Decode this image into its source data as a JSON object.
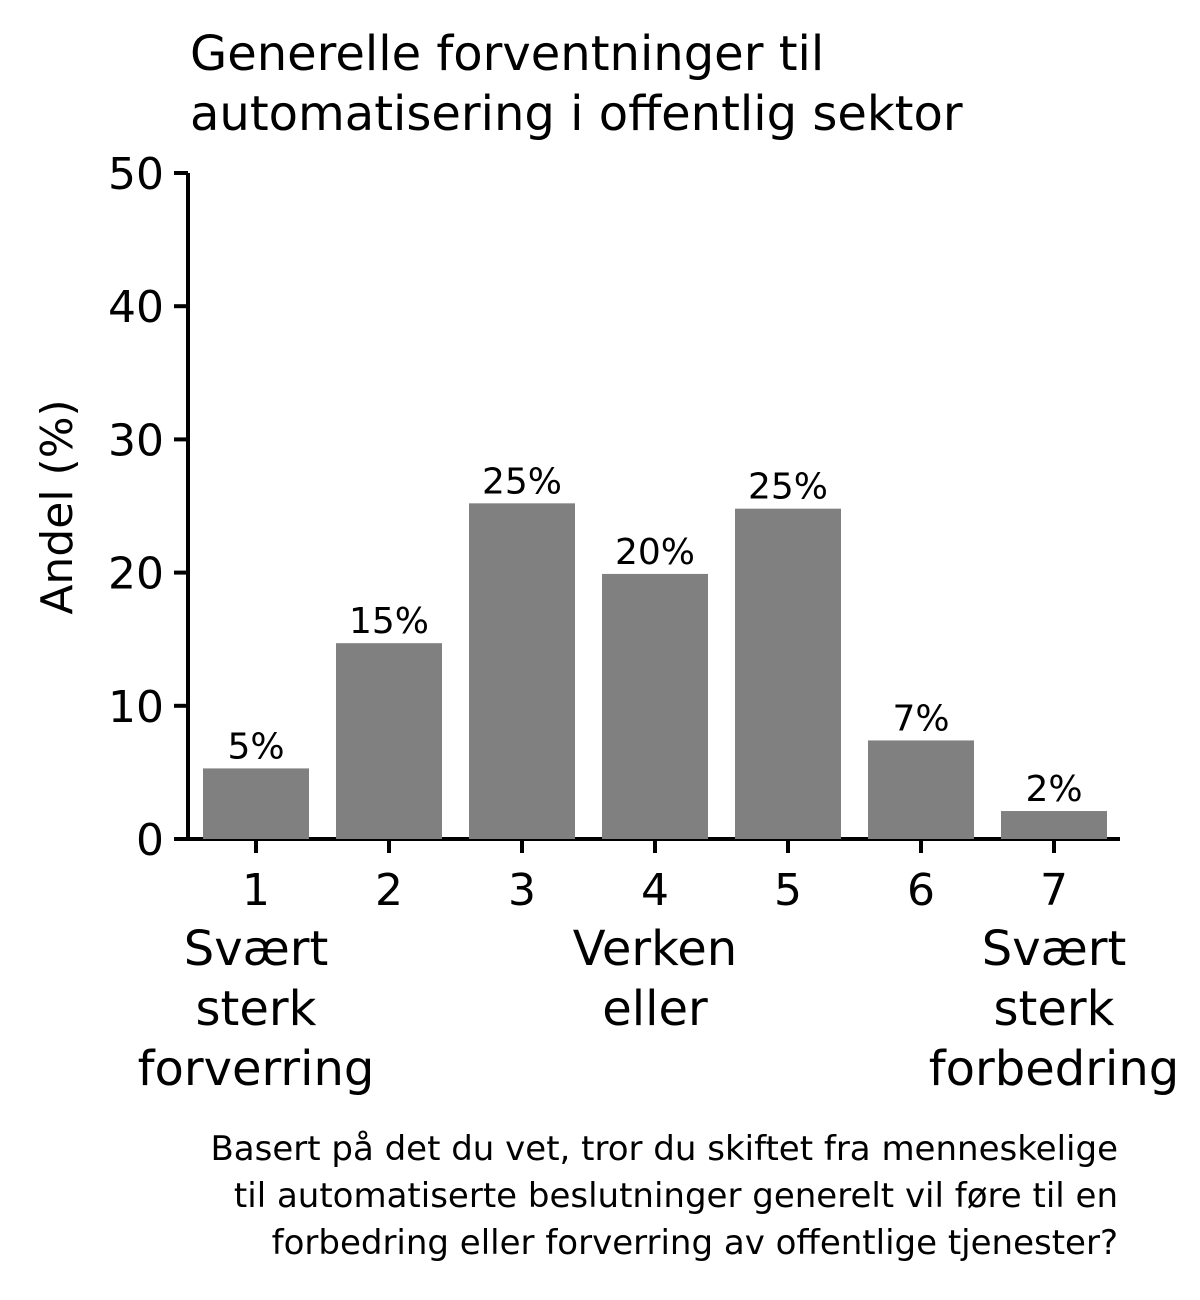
{
  "chart_data": {
    "type": "bar",
    "title": [
      "Generelle forventninger til",
      "automatisering i offentlig sektor"
    ],
    "ylabel": "Andel (%)",
    "xlabel": "",
    "ylim": [
      0,
      50
    ],
    "yticks": [
      0,
      10,
      20,
      30,
      40,
      50
    ],
    "categories": [
      "1",
      "2",
      "3",
      "4",
      "5",
      "6",
      "7"
    ],
    "category_sublabels": [
      [
        "Svært",
        "sterk",
        "forverring"
      ],
      [],
      [],
      [
        "Verken",
        "eller"
      ],
      [],
      [],
      [
        "Svært",
        "sterk",
        "forbedring"
      ]
    ],
    "values": [
      5.3,
      14.7,
      25.2,
      19.9,
      24.8,
      7.4,
      2.1
    ],
    "value_labels": [
      "5%",
      "15%",
      "25%",
      "20%",
      "25%",
      "7%",
      "2%"
    ],
    "bar_color": "#808080",
    "grid": false,
    "caption": [
      "Basert på det du vet, tror du skiftet fra menneskelige",
      "til automatiserte beslutninger generelt vil føre til en",
      "forbedring eller forverring av offentlige tjenester?"
    ]
  }
}
